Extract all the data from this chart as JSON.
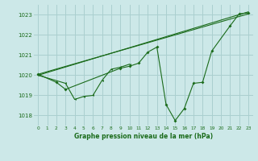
{
  "title": "Graphe pression niveau de la mer (hPa)",
  "background_color": "#cce8e8",
  "grid_color": "#aacfcf",
  "line_color": "#1a6b1a",
  "xlim": [
    -0.5,
    23.5
  ],
  "ylim": [
    1017.5,
    1023.5
  ],
  "yticks": [
    1018,
    1019,
    1020,
    1021,
    1022,
    1023
  ],
  "xticks": [
    0,
    1,
    2,
    3,
    4,
    5,
    6,
    7,
    8,
    9,
    10,
    11,
    12,
    13,
    14,
    15,
    16,
    17,
    18,
    19,
    20,
    21,
    22,
    23
  ],
  "series_zigzag": {
    "x": [
      0,
      3,
      4,
      5,
      6,
      7,
      8,
      9,
      10
    ],
    "y": [
      1020.0,
      1019.6,
      1018.8,
      1018.95,
      1019.0,
      1019.75,
      1020.3,
      1020.4,
      1020.55
    ]
  },
  "series_main": {
    "x": [
      0,
      2,
      3,
      9,
      10,
      11,
      12,
      13,
      14,
      15,
      16,
      17,
      18,
      19,
      21,
      22,
      23
    ],
    "y": [
      1020.05,
      1019.65,
      1019.3,
      1020.35,
      1020.45,
      1020.6,
      1021.15,
      1021.4,
      1018.55,
      1017.75,
      1018.35,
      1019.6,
      1019.65,
      1021.2,
      1022.45,
      1023.05,
      1023.1
    ]
  },
  "series_line1": {
    "x": [
      0,
      23
    ],
    "y": [
      1020.0,
      1023.15
    ]
  },
  "series_line2": {
    "x": [
      0,
      23
    ],
    "y": [
      1020.05,
      1023.05
    ]
  }
}
